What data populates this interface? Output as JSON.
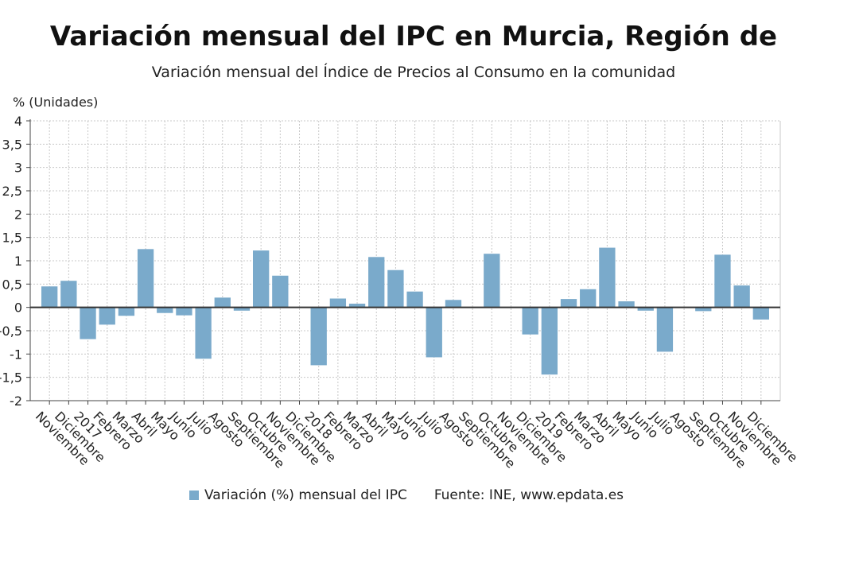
{
  "title": "Variación mensual del IPC en Murcia, Región de",
  "subtitle": "Variación mensual del Índice de Precios al Consumo en la comunidad",
  "source": "Fuente: INE, www.epdata.es",
  "colors": {
    "bar": "#7aaacb",
    "grid": "#c8c8c8",
    "axis": "#444444",
    "zero_line": "#333333"
  },
  "chart_data": {
    "type": "bar",
    "ylabel": "% (Unidades)",
    "ylim": [
      -2,
      4
    ],
    "y_ticks": [
      "-2",
      "-1,5",
      "-1",
      "-0,5",
      "0",
      "0,5",
      "1",
      "1,5",
      "2",
      "2,5",
      "3",
      "3,5",
      "4"
    ],
    "grid": true,
    "legend_position": "bottom",
    "categories": [
      "Noviembre",
      "Diciembre",
      "2017",
      "Febrero",
      "Marzo",
      "Abril",
      "Mayo",
      "Junio",
      "Julio",
      "Agosto",
      "Septiembre",
      "Octubre",
      "Noviembre",
      "Diciembre",
      "2018",
      "Febrero",
      "Marzo",
      "Abril",
      "Mayo",
      "Junio",
      "Julio",
      "Agosto",
      "Septiembre",
      "Octubre",
      "Noviembre",
      "Diciembre",
      "2019",
      "Febrero",
      "Marzo",
      "Abril",
      "Mayo",
      "Junio",
      "Julio",
      "Agosto",
      "Septiembre",
      "Octubre",
      "Noviembre",
      "Diciembre"
    ],
    "series": [
      {
        "name": "Variación (%) mensual del IPC",
        "values": [
          0.45,
          0.57,
          -0.68,
          -0.37,
          -0.18,
          1.25,
          -0.12,
          -0.17,
          -1.1,
          0.21,
          -0.07,
          1.22,
          0.68,
          0.0,
          -1.24,
          0.19,
          0.08,
          1.08,
          0.8,
          0.34,
          -1.07,
          0.16,
          0.0,
          1.15,
          0.0,
          -0.58,
          -1.44,
          0.18,
          0.39,
          1.28,
          0.13,
          -0.07,
          -0.95,
          0.0,
          -0.08,
          1.13,
          0.47,
          -0.26
        ]
      }
    ]
  }
}
